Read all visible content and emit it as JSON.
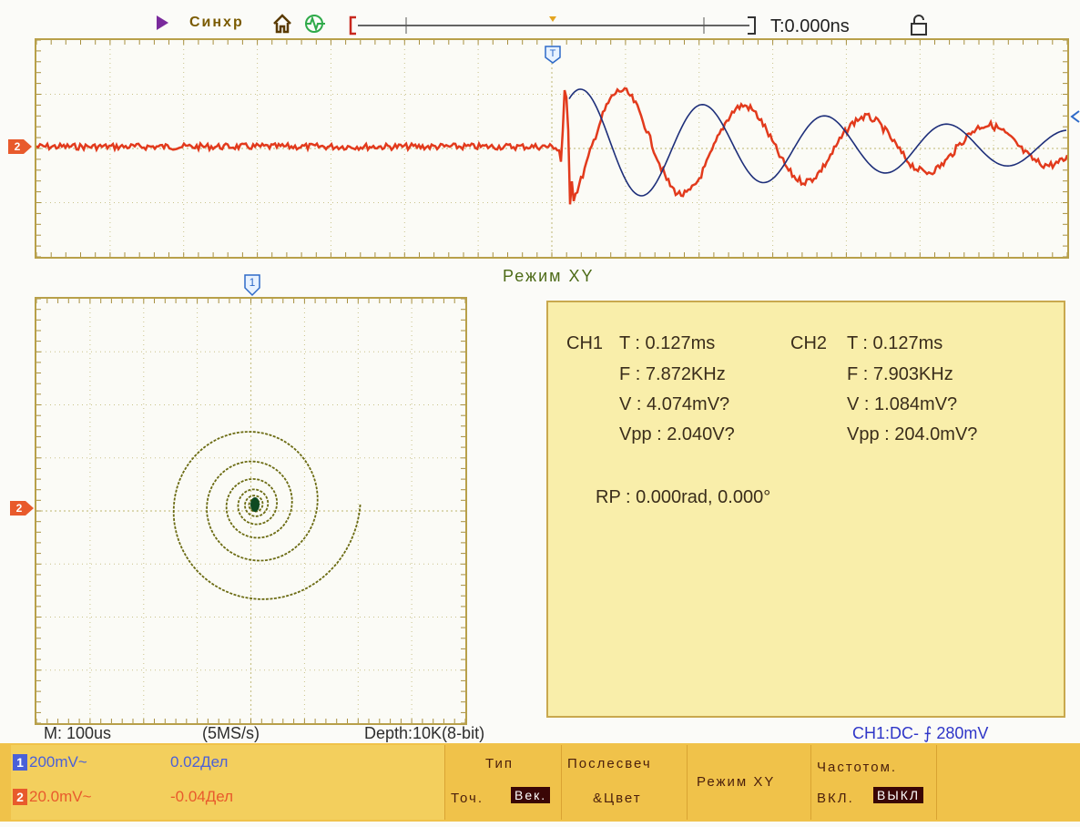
{
  "status": {
    "mode": "Синхр",
    "time_offset": "T:0.000ns"
  },
  "icons": {
    "run": "run-triangle-icon",
    "home": "home-icon",
    "trigger_source": "trigger-source-icon",
    "lock": "lock-icon"
  },
  "markers": {
    "trigger": "T",
    "ch1": "1",
    "ch2": "2"
  },
  "xy_title": "Режим XY",
  "measurements": {
    "ch1_label": "CH1",
    "ch2_label": "CH2",
    "ch1": {
      "T": "T : 0.127ms",
      "F": "F : 7.872KHz",
      "V": "V : 4.074mV?",
      "Vpp": "Vpp : 2.040V?"
    },
    "ch2": {
      "T": "T : 0.127ms",
      "F": "F : 7.903KHz",
      "V": "V : 1.084mV?",
      "Vpp": "Vpp : 204.0mV?"
    },
    "rp": "RP : 0.000rad, 0.000°"
  },
  "acq": {
    "timebase": "M: 100us",
    "sample_rate": "(5MS/s)",
    "depth": "Depth:10K(8-bit)",
    "trigger": "CH1:DC- ⨍ 280mV"
  },
  "channels": [
    {
      "num": "1",
      "scale": "200mV~",
      "pos": "0.02Дел",
      "color": "#4a60d8"
    },
    {
      "num": "2",
      "scale": "20.0mV~",
      "pos": "-0.04Дел",
      "color": "#e85a2c"
    }
  ],
  "softkeys": {
    "type_title": "Тип",
    "type_dots": "Точ.",
    "type_vec": "Век.",
    "persist_line1": "Послесвеч",
    "persist_line2": "&Цвет",
    "xy_mode": "Режим XY",
    "freq_title": "Частотом.",
    "freq_on": "ВКЛ.",
    "freq_off": "ВЫКЛ"
  },
  "colors": {
    "ch1": "#1e2f7a",
    "ch2": "#e23a1c",
    "xy_trace": "#6b6b12",
    "grid": "#c9c28a",
    "frame": "#b8a04a",
    "panel": "#f9eeaa",
    "softbar": "#f0c24a"
  }
}
